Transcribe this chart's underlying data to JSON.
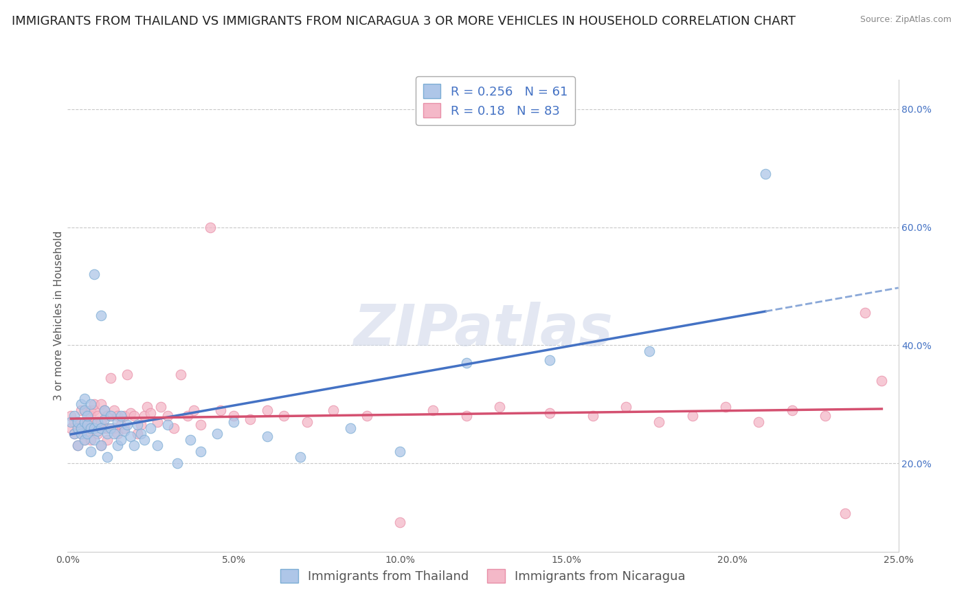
{
  "title": "IMMIGRANTS FROM THAILAND VS IMMIGRANTS FROM NICARAGUA 3 OR MORE VEHICLES IN HOUSEHOLD CORRELATION CHART",
  "source": "Source: ZipAtlas.com",
  "ylabel": "3 or more Vehicles in Household",
  "watermark": "ZIPatlas",
  "xmin": 0.0,
  "xmax": 0.25,
  "ymin": 0.05,
  "ymax": 0.85,
  "ytick_right": [
    0.2,
    0.4,
    0.6,
    0.8
  ],
  "ytick_right_labels": [
    "20.0%",
    "40.0%",
    "60.0%",
    "80.0%"
  ],
  "xtick_labels": [
    "0.0%",
    "5.0%",
    "10.0%",
    "15.0%",
    "20.0%",
    "25.0%"
  ],
  "xtick_vals": [
    0.0,
    0.05,
    0.1,
    0.15,
    0.2,
    0.25
  ],
  "series1_color": "#aec6e8",
  "series1_edge": "#7badd4",
  "series1_line": "#4472c4",
  "series1_line_dash": "#8aa8d8",
  "series1_label": "Immigrants from Thailand",
  "series1_R": 0.256,
  "series1_N": 61,
  "series2_color": "#f4b8c8",
  "series2_edge": "#e88fa8",
  "series2_line": "#d45070",
  "series2_label": "Immigrants from Nicaragua",
  "series2_R": 0.18,
  "series2_N": 83,
  "legend_text_color": "#4472c4",
  "grid_color": "#c8c8c8",
  "background_color": "#ffffff",
  "title_fontsize": 13,
  "axis_label_fontsize": 11,
  "tick_fontsize": 10,
  "legend_fontsize": 13,
  "watermark_fontsize": 60,
  "watermark_color": "#ccd5e8",
  "seed": 7,
  "thailand_x": [
    0.001,
    0.002,
    0.002,
    0.003,
    0.003,
    0.003,
    0.004,
    0.004,
    0.004,
    0.005,
    0.005,
    0.005,
    0.005,
    0.006,
    0.006,
    0.006,
    0.007,
    0.007,
    0.007,
    0.008,
    0.008,
    0.008,
    0.009,
    0.009,
    0.01,
    0.01,
    0.01,
    0.011,
    0.011,
    0.012,
    0.012,
    0.013,
    0.013,
    0.014,
    0.015,
    0.015,
    0.016,
    0.016,
    0.017,
    0.018,
    0.019,
    0.02,
    0.021,
    0.022,
    0.023,
    0.025,
    0.027,
    0.03,
    0.033,
    0.037,
    0.04,
    0.045,
    0.05,
    0.06,
    0.07,
    0.085,
    0.1,
    0.12,
    0.145,
    0.175,
    0.21
  ],
  "thailand_y": [
    0.27,
    0.25,
    0.28,
    0.26,
    0.23,
    0.27,
    0.25,
    0.3,
    0.26,
    0.24,
    0.27,
    0.29,
    0.31,
    0.25,
    0.265,
    0.28,
    0.22,
    0.26,
    0.3,
    0.24,
    0.26,
    0.52,
    0.255,
    0.27,
    0.23,
    0.26,
    0.45,
    0.275,
    0.29,
    0.21,
    0.25,
    0.28,
    0.26,
    0.25,
    0.23,
    0.27,
    0.24,
    0.28,
    0.255,
    0.265,
    0.245,
    0.23,
    0.265,
    0.25,
    0.24,
    0.26,
    0.23,
    0.265,
    0.2,
    0.24,
    0.22,
    0.25,
    0.27,
    0.245,
    0.21,
    0.26,
    0.22,
    0.37,
    0.375,
    0.39,
    0.69
  ],
  "nicaragua_x": [
    0.001,
    0.001,
    0.002,
    0.002,
    0.003,
    0.003,
    0.003,
    0.004,
    0.004,
    0.004,
    0.005,
    0.005,
    0.005,
    0.006,
    0.006,
    0.006,
    0.007,
    0.007,
    0.007,
    0.008,
    0.008,
    0.008,
    0.009,
    0.009,
    0.009,
    0.01,
    0.01,
    0.01,
    0.011,
    0.011,
    0.012,
    0.012,
    0.012,
    0.013,
    0.013,
    0.014,
    0.014,
    0.015,
    0.015,
    0.016,
    0.017,
    0.017,
    0.018,
    0.019,
    0.02,
    0.021,
    0.022,
    0.023,
    0.024,
    0.025,
    0.027,
    0.028,
    0.03,
    0.032,
    0.034,
    0.036,
    0.038,
    0.04,
    0.043,
    0.046,
    0.05,
    0.055,
    0.06,
    0.065,
    0.072,
    0.08,
    0.09,
    0.1,
    0.11,
    0.12,
    0.13,
    0.145,
    0.158,
    0.168,
    0.178,
    0.188,
    0.198,
    0.208,
    0.218,
    0.228,
    0.234,
    0.24,
    0.245
  ],
  "nicaragua_y": [
    0.26,
    0.28,
    0.25,
    0.27,
    0.26,
    0.23,
    0.27,
    0.25,
    0.29,
    0.26,
    0.24,
    0.27,
    0.29,
    0.25,
    0.27,
    0.26,
    0.29,
    0.24,
    0.28,
    0.29,
    0.26,
    0.3,
    0.25,
    0.265,
    0.28,
    0.23,
    0.27,
    0.3,
    0.26,
    0.29,
    0.24,
    0.28,
    0.26,
    0.28,
    0.345,
    0.29,
    0.26,
    0.25,
    0.28,
    0.265,
    0.28,
    0.26,
    0.35,
    0.285,
    0.28,
    0.25,
    0.265,
    0.28,
    0.295,
    0.285,
    0.27,
    0.295,
    0.28,
    0.26,
    0.35,
    0.28,
    0.29,
    0.265,
    0.6,
    0.29,
    0.28,
    0.275,
    0.29,
    0.28,
    0.27,
    0.29,
    0.28,
    0.1,
    0.29,
    0.28,
    0.295,
    0.285,
    0.28,
    0.295,
    0.27,
    0.28,
    0.295,
    0.27,
    0.29,
    0.28,
    0.115,
    0.455,
    0.34
  ]
}
